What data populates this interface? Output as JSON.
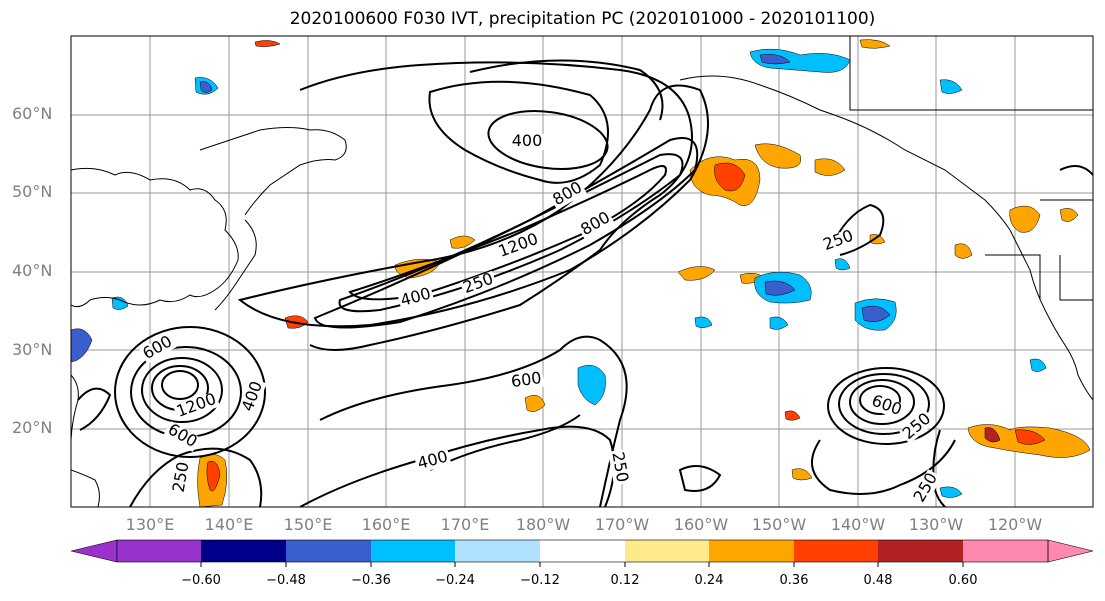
{
  "title": "2020100600 F030 IVT, precipitation PC (2020101000 - 2020101100)",
  "lat_labels": [
    "60°N",
    "50°N",
    "40°N",
    "30°N",
    "20°N"
  ],
  "lon_labels": [
    "130°E",
    "140°E",
    "150°E",
    "160°E",
    "170°E",
    "180°W",
    "170°W",
    "160°W",
    "150°W",
    "140°W",
    "130°W",
    "120°W"
  ],
  "contour_labels": [
    "400",
    "800",
    "800",
    "1200",
    "250",
    "400",
    "250",
    "600",
    "600",
    "1200",
    "400",
    "600",
    "400",
    "250",
    "250",
    "600",
    "250",
    "250"
  ],
  "colorbar": {
    "ticks": [
      "−0.60",
      "−0.48",
      "−0.36",
      "−0.24",
      "−0.12",
      "0.12",
      "0.24",
      "0.36",
      "0.48",
      "0.60"
    ],
    "colors": [
      "#9932cc",
      "#00008b",
      "#3a5fcd",
      "#00bfff",
      "#b0e2ff",
      "#ffffff",
      "#ffe98a",
      "#ffa500",
      "#ff4000",
      "#b22222",
      "#ff88b0"
    ]
  },
  "colors": {
    "positive_light": "#ffe98a",
    "positive_mid": "#ffa500",
    "positive_high": "#ff4000",
    "positive_max": "#b22222",
    "negative_light": "#00bfff",
    "negative_mid": "#3a5fcd",
    "negative_high": "#00008b",
    "contour": "#000000",
    "grid": "#999999"
  }
}
